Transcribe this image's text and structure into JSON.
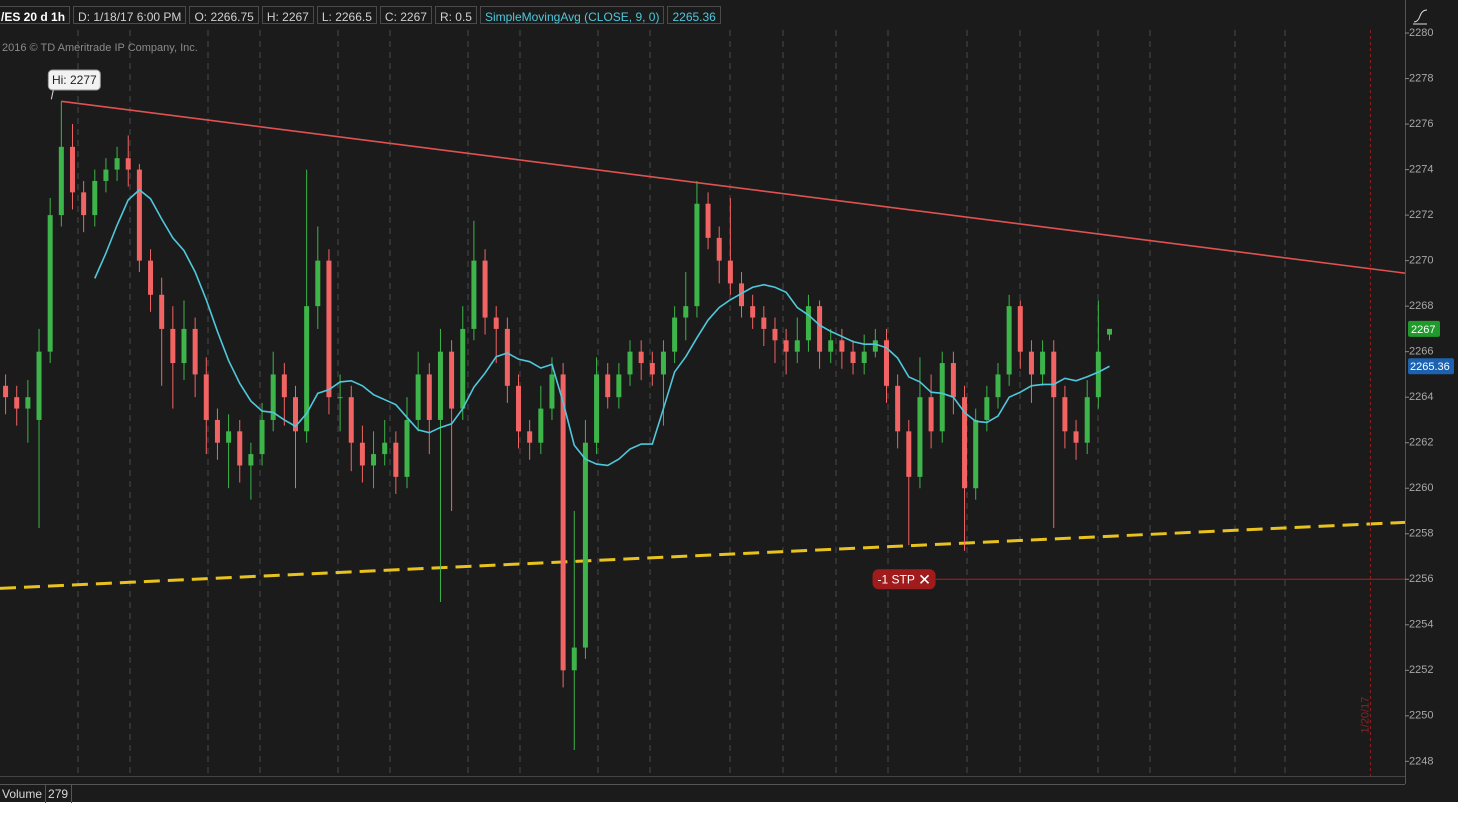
{
  "chart_data": {
    "type": "candlestick",
    "header": [
      "/ES 20 d 1h",
      "D: 1/18/17 6:00 PM",
      "O: 2266.75",
      "H: 2267",
      "L: 2266.5",
      "C: 2267",
      "R: 0.5",
      "SimpleMovingAvg (CLOSE, 9, 0)"
    ],
    "copyright": "2016 © TD Ameritrade IP Company, Inc.",
    "ylim": [
      2247.4,
      2281.1
    ],
    "yticks": [
      2248,
      2250,
      2252,
      2254,
      2256,
      2258,
      2260,
      2262,
      2264,
      2266,
      2268,
      2270,
      2272,
      2274,
      2276,
      2278,
      2280
    ],
    "xlim": [
      -0.5,
      125.5
    ],
    "up_color": "#3db54a",
    "down_color": "#f26464",
    "ohlc": [
      [
        2264.5,
        2265,
        2263.25,
        2264
      ],
      [
        2264,
        2264.5,
        2262.75,
        2263.5
      ],
      [
        2263.5,
        2264.75,
        2262,
        2264
      ],
      [
        2263,
        2267,
        2258.25,
        2266
      ],
      [
        2266,
        2272.75,
        2265.5,
        2272
      ],
      [
        2272,
        2277,
        2271.5,
        2275
      ],
      [
        2275,
        2276,
        2272.25,
        2273
      ],
      [
        2273,
        2273.5,
        2271.25,
        2272
      ],
      [
        2272,
        2274,
        2271.5,
        2273.5
      ],
      [
        2273.5,
        2274.5,
        2273,
        2274
      ],
      [
        2274,
        2275,
        2273.5,
        2274.5
      ],
      [
        2274.5,
        2275.5,
        2273.25,
        2274
      ],
      [
        2274,
        2274.25,
        2269.5,
        2270
      ],
      [
        2270,
        2270.5,
        2267.75,
        2268.5
      ],
      [
        2268.5,
        2269.25,
        2264.5,
        2267
      ],
      [
        2267,
        2268,
        2263.5,
        2265.5
      ],
      [
        2265.5,
        2268.25,
        2264.75,
        2267
      ],
      [
        2267,
        2267.5,
        2264,
        2265
      ],
      [
        2265,
        2265.75,
        2261.5,
        2263
      ],
      [
        2263,
        2263.5,
        2261.25,
        2262
      ],
      [
        2262,
        2263.25,
        2260,
        2262.5
      ],
      [
        2262.5,
        2263,
        2260.25,
        2261
      ],
      [
        2261,
        2262,
        2259.5,
        2261.5
      ],
      [
        2261.5,
        2263.75,
        2261,
        2263
      ],
      [
        2263,
        2266,
        2262.5,
        2265
      ],
      [
        2265,
        2265.5,
        2262.75,
        2264
      ],
      [
        2264,
        2264.5,
        2260,
        2262.5
      ],
      [
        2262.5,
        2274,
        2262,
        2268
      ],
      [
        2268,
        2271.5,
        2267,
        2270
      ],
      [
        2270,
        2270.5,
        2263.25,
        2264
      ],
      [
        2264,
        2265,
        2262.5,
        2264
      ],
      [
        2264,
        2264.5,
        2260.75,
        2262
      ],
      [
        2262,
        2262.75,
        2260.25,
        2261
      ],
      [
        2261,
        2262.5,
        2260,
        2261.5
      ],
      [
        2261.5,
        2263,
        2261,
        2262
      ],
      [
        2262,
        2262.5,
        2259.75,
        2260.5
      ],
      [
        2260.5,
        2264,
        2260,
        2263
      ],
      [
        2263,
        2266,
        2262.5,
        2265
      ],
      [
        2265,
        2265.5,
        2261.5,
        2263
      ],
      [
        2263,
        2267,
        2255,
        2266
      ],
      [
        2266,
        2266.5,
        2259,
        2263.5
      ],
      [
        2263.5,
        2268,
        2263,
        2267
      ],
      [
        2267,
        2271.75,
        2266.5,
        2270
      ],
      [
        2270,
        2270.5,
        2266.75,
        2267.5
      ],
      [
        2267.5,
        2268,
        2265.5,
        2267
      ],
      [
        2267,
        2267.5,
        2263.75,
        2264.5
      ],
      [
        2264.5,
        2265,
        2261.75,
        2262.5
      ],
      [
        2262.5,
        2263,
        2261.25,
        2262
      ],
      [
        2262,
        2264.5,
        2261.5,
        2263.5
      ],
      [
        2263.5,
        2265.75,
        2263,
        2265
      ],
      [
        2265,
        2265.5,
        2251.25,
        2252
      ],
      [
        2252,
        2259,
        2248.5,
        2253
      ],
      [
        2253,
        2263,
        2252.5,
        2262
      ],
      [
        2262,
        2265.75,
        2261.5,
        2265
      ],
      [
        2265,
        2265.5,
        2263.5,
        2264
      ],
      [
        2264,
        2265.5,
        2263.5,
        2265
      ],
      [
        2265,
        2266.5,
        2264.5,
        2266
      ],
      [
        2266,
        2266.5,
        2264.75,
        2265.5
      ],
      [
        2265.5,
        2266,
        2264.5,
        2265
      ],
      [
        2265,
        2266.5,
        2262.75,
        2266
      ],
      [
        2266,
        2268,
        2265.5,
        2267.5
      ],
      [
        2267.5,
        2269.5,
        2266.5,
        2268
      ],
      [
        2268,
        2273.5,
        2267.5,
        2272.5
      ],
      [
        2272.5,
        2273,
        2270.5,
        2271
      ],
      [
        2271,
        2271.5,
        2269,
        2270
      ],
      [
        2270,
        2272.75,
        2268.5,
        2269
      ],
      [
        2269,
        2269.5,
        2267.5,
        2268
      ],
      [
        2268,
        2268.5,
        2267,
        2267.5
      ],
      [
        2267.5,
        2268,
        2266.25,
        2267
      ],
      [
        2267,
        2267.5,
        2265.5,
        2266.5
      ],
      [
        2266.5,
        2267,
        2265,
        2266
      ],
      [
        2266,
        2267.5,
        2265.5,
        2266.5
      ],
      [
        2266.5,
        2268.5,
        2266,
        2268
      ],
      [
        2268,
        2268.25,
        2265.25,
        2266
      ],
      [
        2266,
        2267,
        2265.5,
        2266.5
      ],
      [
        2266.5,
        2267,
        2265.25,
        2266
      ],
      [
        2266,
        2266.5,
        2265,
        2265.5
      ],
      [
        2265.5,
        2266.75,
        2265,
        2266
      ],
      [
        2266,
        2267,
        2265.75,
        2266.5
      ],
      [
        2266.5,
        2267,
        2263.75,
        2264.5
      ],
      [
        2264.5,
        2265,
        2261.75,
        2262.5
      ],
      [
        2262.5,
        2263,
        2257.5,
        2260.5
      ],
      [
        2260.5,
        2265.75,
        2260,
        2264
      ],
      [
        2264,
        2265,
        2261.75,
        2262.5
      ],
      [
        2262.5,
        2266,
        2262,
        2265.5
      ],
      [
        2265.5,
        2266,
        2263.25,
        2264
      ],
      [
        2264,
        2264.5,
        2257.25,
        2260
      ],
      [
        2260,
        2263.5,
        2259.5,
        2263
      ],
      [
        2263,
        2264.5,
        2262.5,
        2264
      ],
      [
        2264,
        2265.5,
        2263.5,
        2265
      ],
      [
        2265,
        2268.5,
        2264.5,
        2268
      ],
      [
        2268,
        2268.25,
        2265.25,
        2266
      ],
      [
        2266,
        2266.5,
        2263.75,
        2265
      ],
      [
        2265,
        2266.5,
        2264.5,
        2266
      ],
      [
        2266,
        2266.5,
        2258.25,
        2264
      ],
      [
        2264,
        2264.5,
        2261.75,
        2262.5
      ],
      [
        2262.5,
        2263,
        2261.25,
        2262
      ],
      [
        2262,
        2264.75,
        2261.5,
        2264
      ],
      [
        2264,
        2268.25,
        2263.5,
        2266
      ],
      [
        2266.75,
        2267,
        2266.5,
        2267
      ]
    ],
    "sma": {
      "color": "#4fc8dc",
      "values": [
        null,
        null,
        null,
        null,
        null,
        null,
        null,
        null,
        2269.22,
        2270.33,
        2271.56,
        2272.67,
        2273.11,
        2272.72,
        2271.83,
        2271,
        2270.44,
        2269.5,
        2268.28,
        2266.89,
        2265.61,
        2264.61,
        2263.83,
        2263.39,
        2263.33,
        2263,
        2262.72,
        2263.28,
        2264.17,
        2264.33,
        2264.67,
        2264.72,
        2264.5,
        2264.11,
        2263.89,
        2263.67,
        2263.11,
        2262.56,
        2262.44,
        2262.67,
        2262.83,
        2263.5,
        2264.44,
        2265.06,
        2265.78,
        2265.94,
        2265.67,
        2265.56,
        2265.28,
        2265.44,
        2263.78,
        2261.89,
        2261.28,
        2261.06,
        2261,
        2261.28,
        2261.72,
        2261.94,
        2261.94,
        2263.5,
        2265.11,
        2265.78,
        2266.61,
        2267.39,
        2267.94,
        2268.28,
        2268.56,
        2268.83,
        2268.94,
        2268.83,
        2268.61,
        2267.94,
        2267.61,
        2267.17,
        2266.89,
        2266.67,
        2266.44,
        2266.33,
        2266.33,
        2266.17,
        2265.72,
        2264.89,
        2264.67,
        2264.22,
        2264.17,
        2264,
        2263.33,
        2262.94,
        2262.89,
        2263.17,
        2264,
        2264.22,
        2264.5,
        2264.56,
        2264.56,
        2264.83,
        2264.72,
        2264.9,
        2265.1,
        2265.36
      ]
    },
    "hi_label": "Hi: 2277",
    "trendlines": [
      {
        "color": "#e05252",
        "dashed": false,
        "x": [
          5,
          125.5
        ],
        "values": [
          2277,
          2269.45
        ]
      },
      {
        "color": "#e8c21e",
        "dashed": true,
        "x": [
          -0.5,
          125.5
        ],
        "values": [
          2255.6,
          2258.5
        ]
      }
    ],
    "order": {
      "label": "-1 STP",
      "value": 2256,
      "x": [
        83.4,
        125.5
      ],
      "color": "#a01c1c"
    },
    "expiry": {
      "label": "1/20/17",
      "x": 122.4
    },
    "volume": {
      "label": "Volume",
      "value": 279
    }
  }
}
